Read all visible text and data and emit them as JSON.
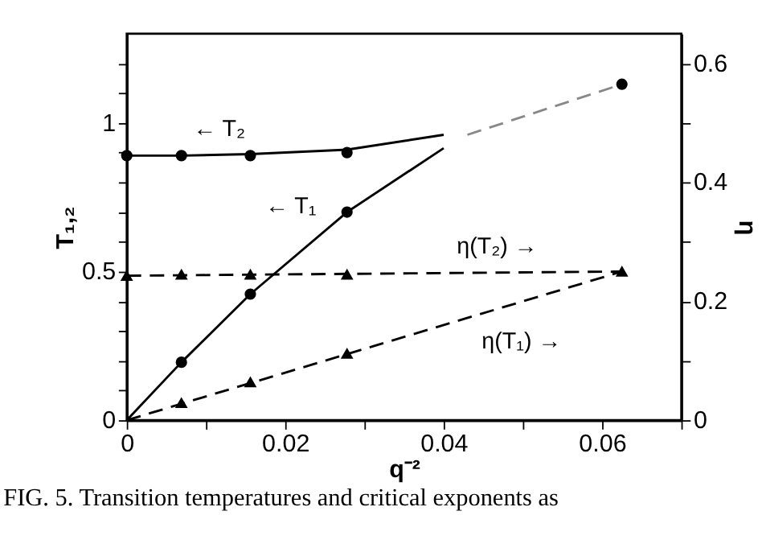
{
  "chart_data": {
    "type": "line",
    "xlabel": "q⁻²",
    "ylabel": "T₁,₂",
    "y2label": "η",
    "xlim": [
      0,
      0.07
    ],
    "xticks": [
      0,
      {
        "value": 0.01,
        "label": null
      },
      0.02,
      {
        "value": 0.03,
        "label": null
      },
      0.04,
      {
        "value": 0.05,
        "label": null
      },
      0.06,
      {
        "value": 0.07,
        "label": null
      }
    ],
    "ylim": [
      0,
      1.3
    ],
    "yticks": [
      0,
      {
        "value": 0.1,
        "label": null
      },
      {
        "value": 0.2,
        "label": null
      },
      {
        "value": 0.3,
        "label": null
      },
      {
        "value": 0.4,
        "label": null
      },
      0.5,
      {
        "value": 0.6,
        "label": null
      },
      {
        "value": 0.7,
        "label": null
      },
      {
        "value": 0.8,
        "label": null
      },
      {
        "value": 0.9,
        "label": null
      },
      1,
      {
        "value": 1.1,
        "label": null
      },
      {
        "value": 1.2,
        "label": null
      }
    ],
    "y2lim": [
      0,
      0.65
    ],
    "y2ticks": [
      0,
      {
        "value": 0.1,
        "label": null
      },
      0.2,
      {
        "value": 0.3,
        "label": null
      },
      0.4,
      {
        "value": 0.5,
        "label": null
      },
      0.6
    ],
    "grid": false,
    "series": [
      {
        "color": "#000000",
        "line_style": "solid",
        "marker": "none",
        "x": [
          0,
          0.0069,
          0.0156,
          0.0278,
          0.04
        ],
        "values": [
          0.89,
          0.89,
          0.895,
          0.91,
          0.96
        ]
      },
      {
        "color": "#888888",
        "line_style": "dashed",
        "marker": "none",
        "x": [
          0.043,
          0.0625
        ],
        "values": [
          0.96,
          1.13
        ]
      },
      {
        "color": "#000000",
        "line_style": "solid",
        "marker": "none",
        "x": [
          0,
          0.0069,
          0.0156,
          0.0278,
          0.04
        ],
        "values": [
          0,
          0.195,
          0.424,
          0.7,
          0.915
        ]
      },
      {
        "type": "scatter",
        "color": "#000000",
        "marker": "circle",
        "x": [
          0,
          0.0069,
          0.0156,
          0.0278,
          0.0625
        ],
        "values": [
          0.89,
          0.89,
          0.89,
          0.9,
          1.13
        ]
      },
      {
        "type": "scatter",
        "color": "#000000",
        "marker": "circle",
        "x": [
          0.0069,
          0.0156,
          0.0278
        ],
        "values": [
          0.195,
          0.424,
          0.7
        ]
      },
      {
        "axis": "y2",
        "color": "#000000",
        "line_style": "dashed",
        "marker": "none",
        "x": [
          0,
          0.0625
        ],
        "values": [
          0.243,
          0.25
        ]
      },
      {
        "axis": "y2",
        "color": "#000000",
        "line_style": "dashed",
        "marker": "none",
        "x": [
          0,
          0.0625
        ],
        "values": [
          0,
          0.25
        ]
      },
      {
        "type": "scatter",
        "axis": "y2",
        "color": "#000000",
        "marker": "triangle",
        "x": [
          0,
          0.0069,
          0.0156,
          0.0278,
          0.0625
        ],
        "values": [
          0.243,
          0.245,
          0.245,
          0.245,
          0.25
        ]
      },
      {
        "type": "scatter",
        "axis": "y2",
        "color": "#000000",
        "marker": "triangle",
        "x": [
          0.0069,
          0.0156,
          0.0278
        ],
        "values": [
          0.029,
          0.064,
          0.112
        ]
      }
    ],
    "annotations": [
      "← T₂",
      "← T₁",
      "η(T₂) →",
      "η(T₁) →",
      "FIG. 5. Transition temperatures and critical exponents as"
    ]
  }
}
